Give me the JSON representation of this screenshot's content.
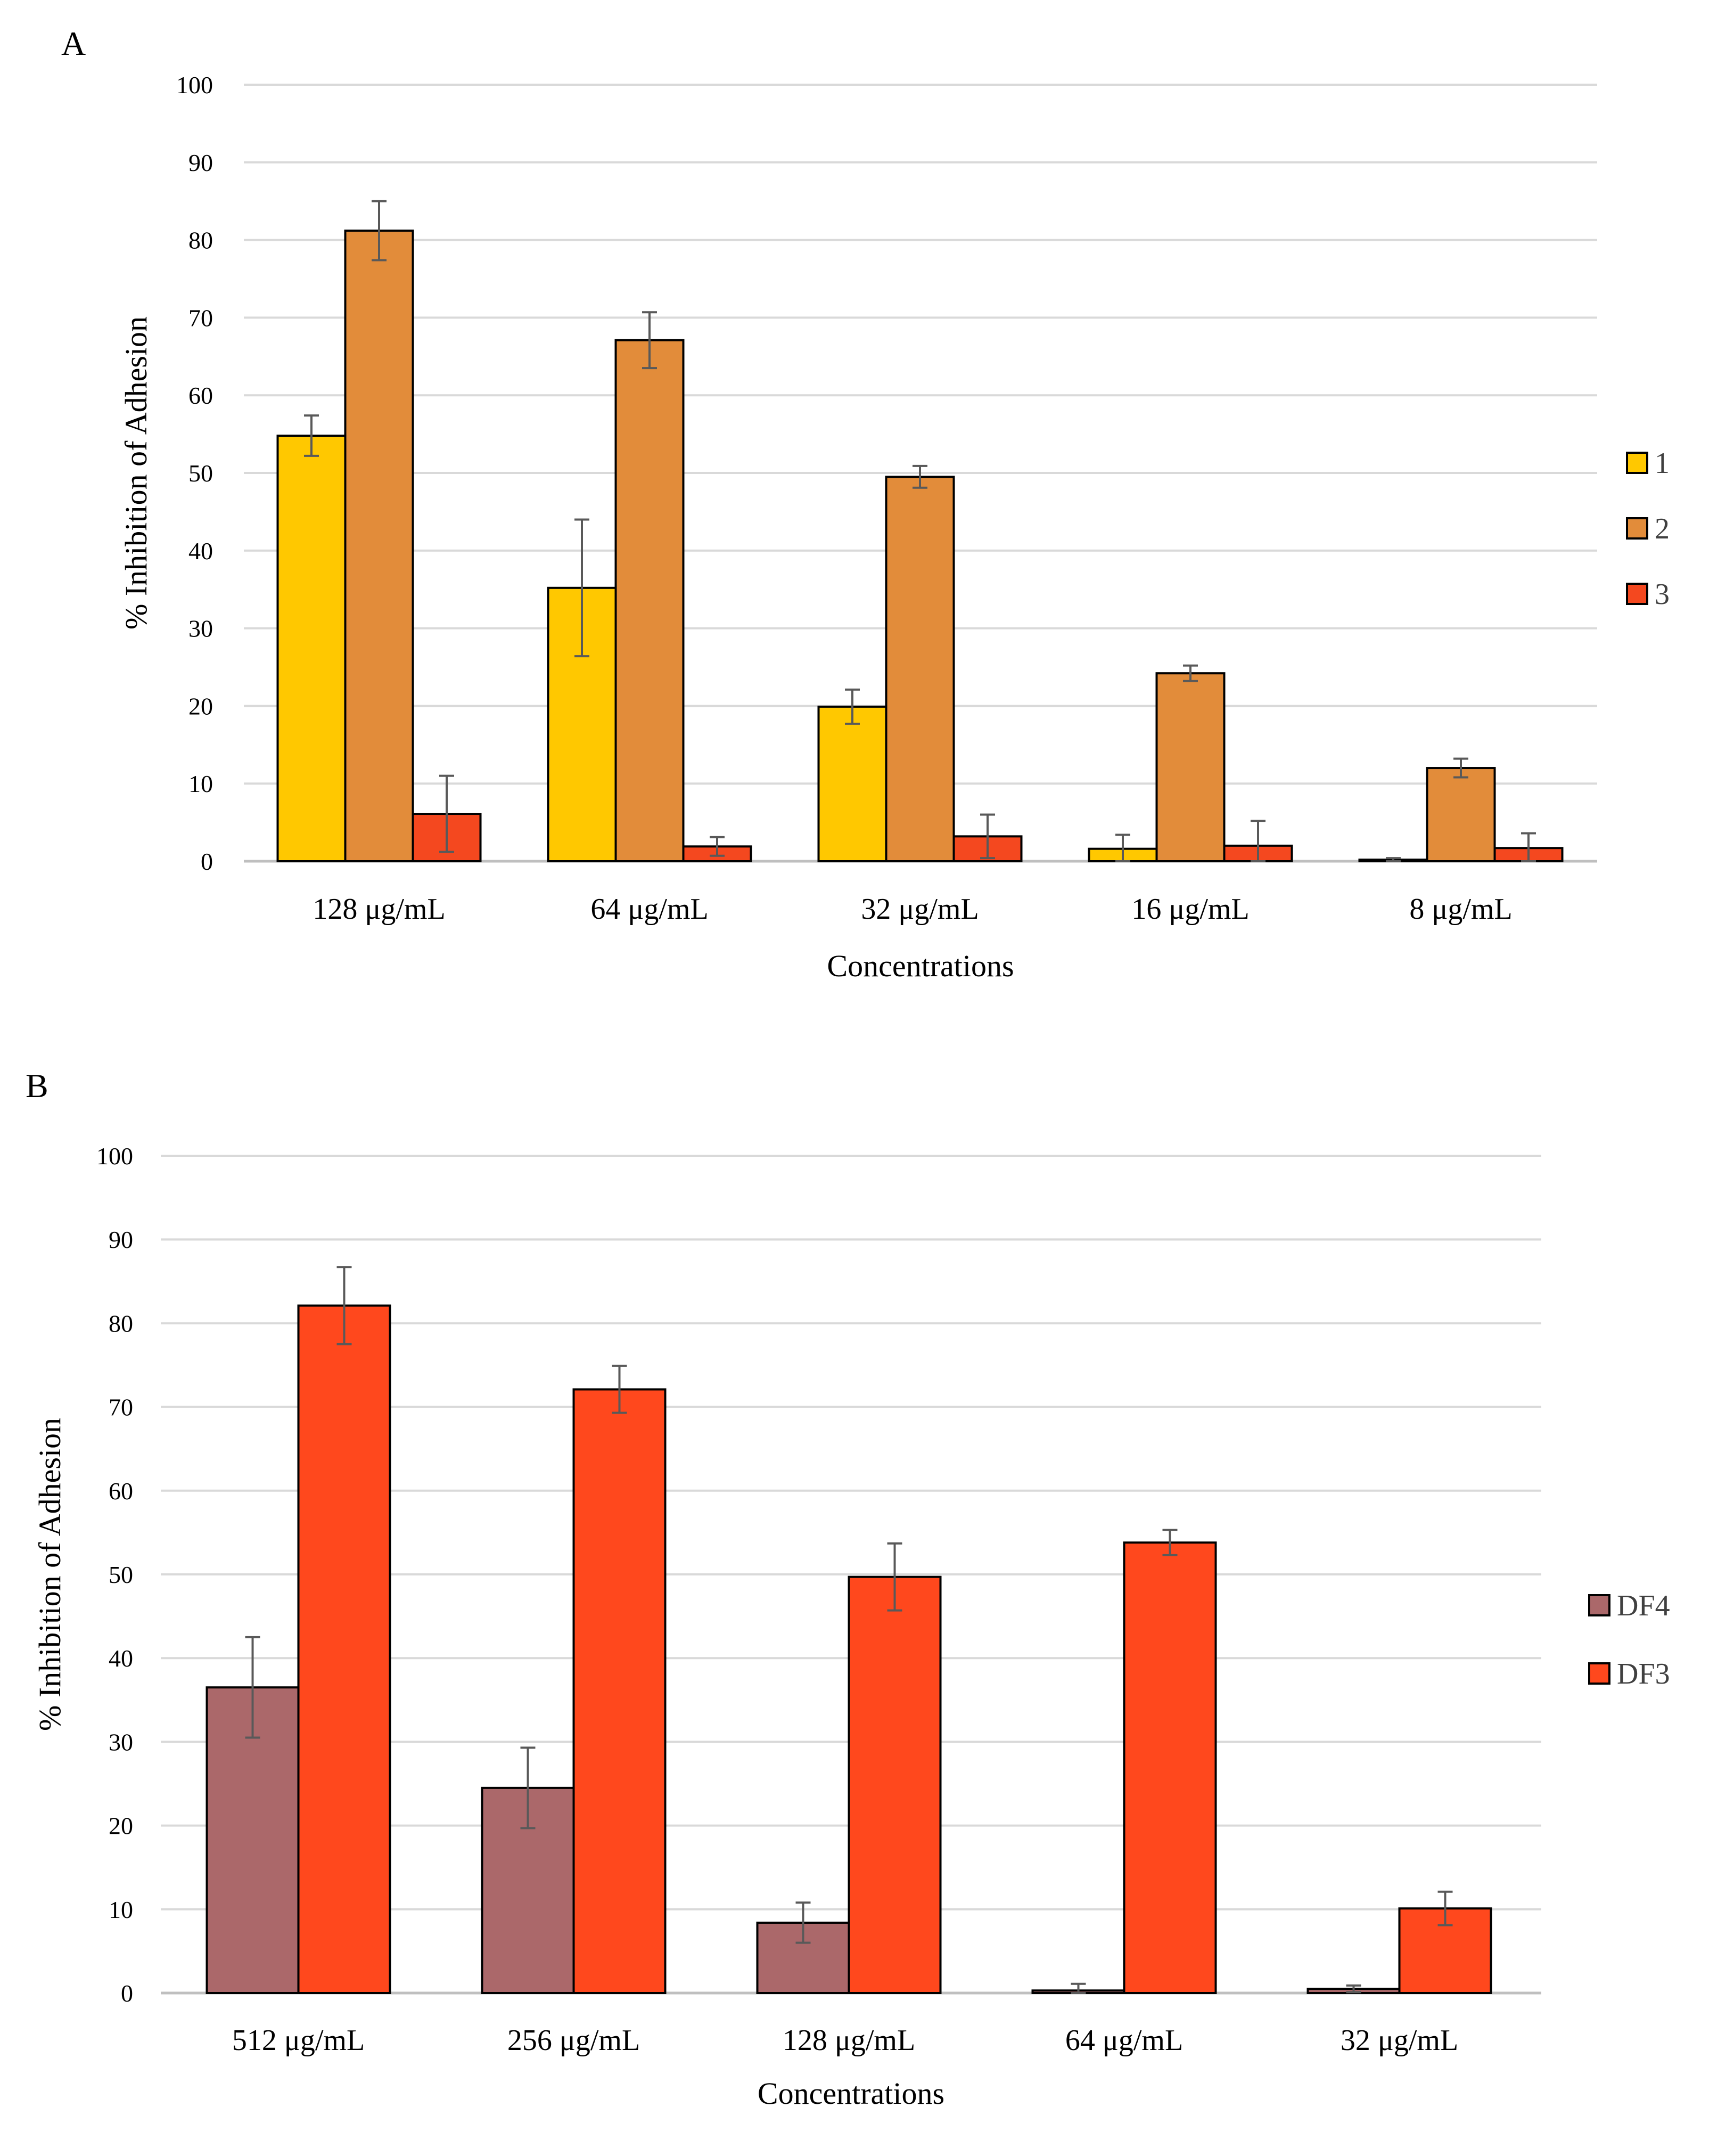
{
  "chart_data": [
    {
      "panel": "A",
      "type": "bar",
      "title": "",
      "xlabel": "Concentrations",
      "ylabel": "% Inhibition of Adhesion",
      "ylim": [
        0,
        100
      ],
      "yticks": [
        0,
        10,
        20,
        30,
        40,
        50,
        60,
        70,
        80,
        90,
        100
      ],
      "grid": true,
      "legend_position": "right",
      "categories": [
        "128 μg/mL",
        "64 μg/mL",
        "32 μg/mL",
        "16 μg/mL",
        "8 μg/mL"
      ],
      "series": [
        {
          "name": "1",
          "color": "#ffc800",
          "values": [
            54.8,
            35.2,
            19.9,
            1.6,
            0.2
          ],
          "errors": [
            2.6,
            8.8,
            2.2,
            1.8,
            0.2
          ]
        },
        {
          "name": "2",
          "color": "#e28c3a",
          "values": [
            81.2,
            67.1,
            49.5,
            24.2,
            12.0
          ],
          "errors": [
            3.8,
            3.6,
            1.4,
            1.0,
            1.2
          ]
        },
        {
          "name": "3",
          "color": "#f4481f",
          "values": [
            6.1,
            1.9,
            3.2,
            2.0,
            1.7
          ],
          "errors": [
            4.9,
            1.2,
            2.8,
            3.2,
            1.9
          ]
        }
      ]
    },
    {
      "panel": "B",
      "type": "bar",
      "title": "",
      "xlabel": "Concentrations",
      "ylabel": "% Inhibition of Adhesion",
      "ylim": [
        0,
        100
      ],
      "yticks": [
        0,
        10,
        20,
        30,
        40,
        50,
        60,
        70,
        80,
        90,
        100
      ],
      "grid": true,
      "legend_position": "right",
      "categories": [
        "512 μg/mL",
        "256 μg/mL",
        "128 μg/mL",
        "64 μg/mL",
        "32 μg/mL"
      ],
      "series": [
        {
          "name": "DF4",
          "color": "#ab686a",
          "values": [
            36.5,
            24.5,
            8.4,
            0.3,
            0.5
          ],
          "errors": [
            6.0,
            4.8,
            2.4,
            0.8,
            0.4
          ]
        },
        {
          "name": "DF3",
          "color": "#ff481d",
          "values": [
            82.1,
            72.1,
            49.7,
            53.8,
            10.1
          ],
          "errors": [
            4.6,
            2.8,
            4.0,
            1.5,
            2.0
          ]
        }
      ]
    }
  ]
}
